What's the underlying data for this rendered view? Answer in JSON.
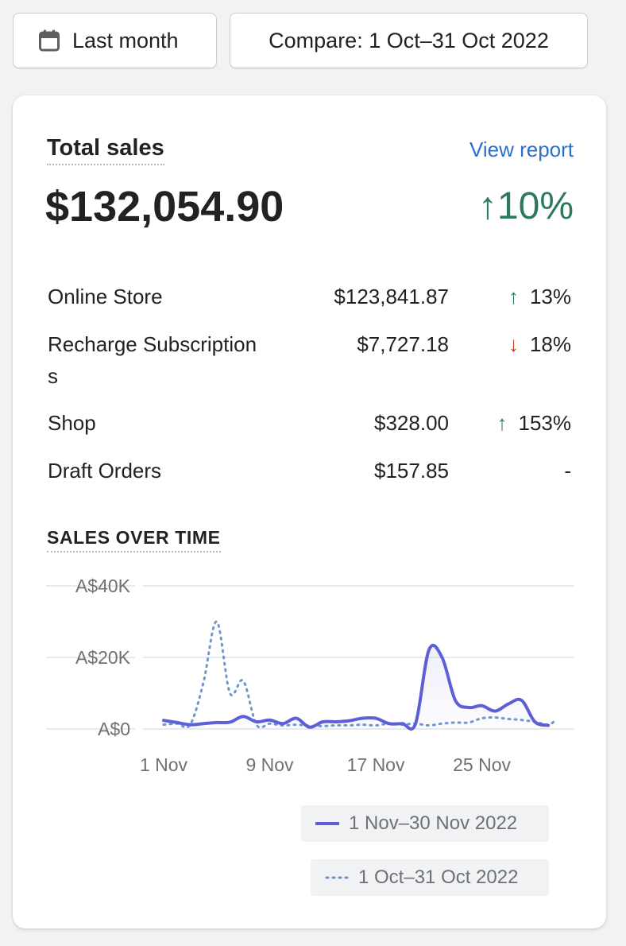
{
  "toolbar": {
    "period_label": "Last month",
    "compare_label": "Compare: 1 Oct–31 Oct 2022"
  },
  "card": {
    "title": "Total sales",
    "view_report": "View report",
    "total_value": "$132,054.90",
    "total_change": "↑10%"
  },
  "channels": [
    {
      "label": "Online Store",
      "value": "$123,841.87",
      "change": "13%",
      "direction": "up"
    },
    {
      "label": "Recharge Subscriptions",
      "value": "$7,727.18",
      "change": "18%",
      "direction": "down"
    },
    {
      "label": "Shop",
      "value": "$328.00",
      "change": "153%",
      "direction": "up"
    },
    {
      "label": "Draft Orders",
      "value": "$157.85",
      "change": "-",
      "direction": "none"
    }
  ],
  "sales_over_time": {
    "title": "SALES OVER TIME"
  },
  "colors": {
    "current_series": "#5c5fd6",
    "previous_series": "#6f96cf",
    "positive": "#2d7a5a",
    "negative": "#c4391d",
    "link": "#2c6ecb"
  },
  "chart_data": {
    "type": "line",
    "y_ticks": [
      "A$40K",
      "A$20K",
      "A$0"
    ],
    "ylim": [
      0,
      40000
    ],
    "x_tick_labels": [
      "1 Nov",
      "9 Nov",
      "17 Nov",
      "25 Nov"
    ],
    "x_tick_days": [
      1,
      9,
      17,
      25
    ],
    "grid": true,
    "legend_placement": "bottom-right",
    "series": [
      {
        "name": "1 Nov–30 Nov 2022",
        "style": "solid",
        "x": [
          1,
          2,
          3,
          4,
          5,
          6,
          7,
          8,
          9,
          10,
          11,
          12,
          13,
          14,
          15,
          16,
          17,
          18,
          19,
          20,
          21,
          22,
          23,
          24,
          25,
          26,
          27,
          28,
          29,
          30
        ],
        "values": [
          2400,
          1800,
          1200,
          1500,
          1800,
          1900,
          3500,
          2000,
          2500,
          1500,
          3000,
          500,
          2000,
          2000,
          2300,
          3000,
          3000,
          1500,
          1500,
          1500,
          22000,
          20000,
          8000,
          6000,
          6500,
          5000,
          7000,
          8000,
          2000,
          1000
        ]
      },
      {
        "name": "1 Oct–31 Oct 2022",
        "style": "dotted",
        "x": [
          1,
          2,
          3,
          4,
          5,
          6,
          7,
          8,
          9,
          10,
          11,
          12,
          13,
          14,
          15,
          16,
          17,
          18,
          19,
          20,
          21,
          22,
          23,
          24,
          25,
          26,
          27,
          28,
          29,
          30,
          31
        ],
        "values": [
          1200,
          1500,
          1200,
          13000,
          30000,
          10000,
          13500,
          1200,
          1500,
          1000,
          1200,
          900,
          800,
          1000,
          1000,
          1200,
          1000,
          1500,
          1200,
          1500,
          1000,
          1500,
          1800,
          1800,
          3000,
          3200,
          2800,
          2500,
          2000,
          1200,
          2200
        ]
      }
    ]
  }
}
